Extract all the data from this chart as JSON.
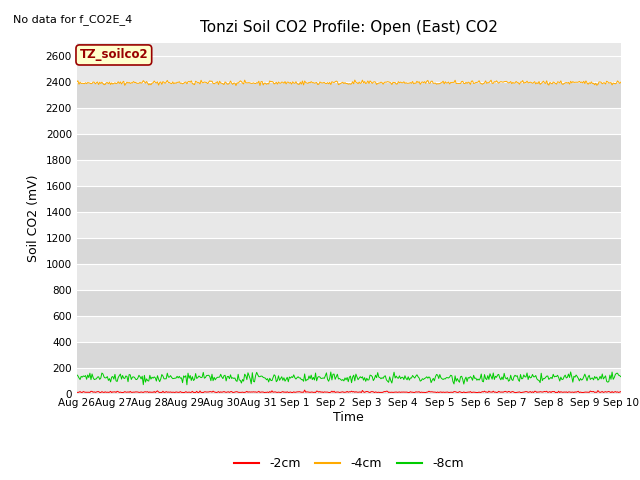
{
  "title": "Tonzi Soil CO2 Profile: Open (East) CO2",
  "no_data_label": "No data for f_CO2E_4",
  "ylabel": "Soil CO2 (mV)",
  "xlabel": "Time",
  "ylim": [
    0,
    2700
  ],
  "yticks": [
    0,
    200,
    400,
    600,
    800,
    1000,
    1200,
    1400,
    1600,
    1800,
    2000,
    2200,
    2400,
    2600
  ],
  "bg_color_light": "#e8e8e8",
  "bg_color_dark": "#d8d8d8",
  "line_label_box": "TZ_soilco2",
  "line_label_box_bg": "#ffffcc",
  "line_label_box_fg": "#990000",
  "series": [
    {
      "label": "-2cm",
      "color": "#ff0000",
      "base": 8,
      "noise": 5
    },
    {
      "label": "-4cm",
      "color": "#ffaa00",
      "base": 2395,
      "noise": 8
    },
    {
      "label": "-8cm",
      "color": "#00cc00",
      "base": 120,
      "noise": 18
    }
  ],
  "n_points": 500,
  "xtick_labels": [
    "Aug 26",
    "Aug 27",
    "Aug 28",
    "Aug 29",
    "Aug 30",
    "Aug 31",
    "Sep 1",
    "Sep 2",
    "Sep 3",
    "Sep 4",
    "Sep 5",
    "Sep 6",
    "Sep 7",
    "Sep 8",
    "Sep 9",
    "Sep 10"
  ],
  "xtick_positions": [
    0,
    1,
    2,
    3,
    4,
    5,
    6,
    7,
    8,
    9,
    10,
    11,
    12,
    13,
    14,
    15
  ]
}
